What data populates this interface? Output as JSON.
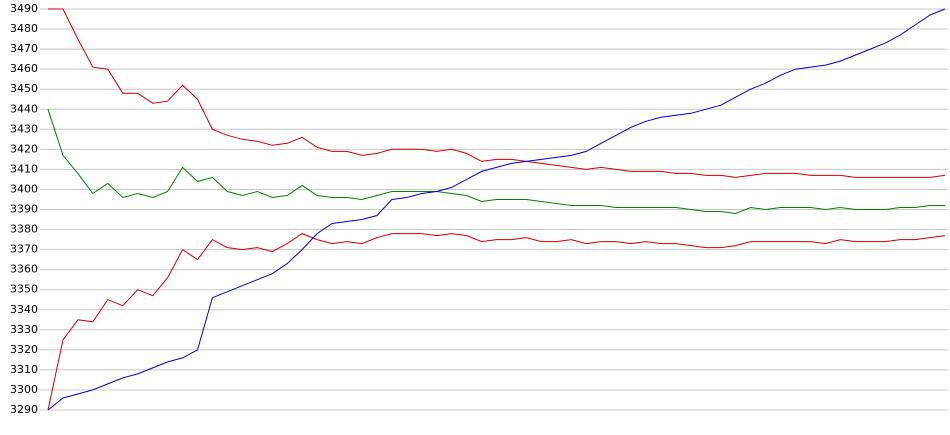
{
  "chart_data": {
    "type": "line",
    "categories": [
      null,
      null,
      null,
      null,
      null,
      null,
      null,
      null,
      null,
      null,
      null,
      null,
      null,
      null,
      null,
      null,
      null,
      null,
      null,
      null,
      null,
      null,
      null,
      null,
      null,
      null,
      null,
      null,
      null,
      null,
      null,
      null,
      null,
      null,
      null,
      null,
      null,
      null,
      null,
      null,
      null,
      null,
      null,
      null,
      null,
      null,
      null,
      null,
      null,
      null,
      null,
      null,
      null,
      null,
      null,
      null,
      null,
      null,
      null,
      null,
      null
    ],
    "ylim": [
      3290,
      3490
    ],
    "yticks": [
      3290,
      3300,
      3310,
      3320,
      3330,
      3340,
      3350,
      3360,
      3370,
      3380,
      3390,
      3400,
      3410,
      3420,
      3430,
      3440,
      3450,
      3460,
      3470,
      3480,
      3490
    ],
    "grid": true,
    "series": [
      {
        "color": "#cc0000",
        "values": [
          3490,
          3490,
          3475,
          3461,
          3460,
          3448,
          3448,
          3443,
          3444,
          3452,
          3445,
          3430,
          3427,
          3425,
          3424,
          3422,
          3423,
          3426,
          3421,
          3419,
          3419,
          3417,
          3418,
          3420,
          3420,
          3420,
          3419,
          3420,
          3418,
          3414,
          3415,
          3415,
          3414,
          3413,
          3412,
          3411,
          3410,
          3411,
          3410,
          3409,
          3409,
          3409,
          3408,
          3408,
          3407,
          3407,
          3406,
          3407,
          3408,
          3408,
          3408,
          3407,
          3407,
          3407,
          3406,
          3406,
          3406,
          3406,
          3406,
          3406,
          3407
        ]
      },
      {
        "color": "#cc0000",
        "values": [
          3290,
          3325,
          3335,
          3334,
          3345,
          3342,
          3350,
          3347,
          3356,
          3370,
          3365,
          3375,
          3371,
          3370,
          3371,
          3369,
          3373,
          3378,
          3375,
          3373,
          3374,
          3373,
          3376,
          3378,
          3378,
          3378,
          3377,
          3378,
          3377,
          3374,
          3375,
          3375,
          3376,
          3374,
          3374,
          3375,
          3373,
          3374,
          3374,
          3373,
          3374,
          3373,
          3373,
          3372,
          3371,
          3371,
          3372,
          3374,
          3374,
          3374,
          3374,
          3374,
          3373,
          3375,
          3374,
          3374,
          3374,
          3375,
          3375,
          3376,
          3377
        ]
      },
      {
        "color": "#008000",
        "values": [
          3440,
          3417,
          3408,
          3398,
          3403,
          3396,
          3398,
          3396,
          3399,
          3411,
          3404,
          3406,
          3399,
          3397,
          3399,
          3396,
          3397,
          3402,
          3397,
          3396,
          3396,
          3395,
          3397,
          3399,
          3399,
          3399,
          3399,
          3398,
          3397,
          3394,
          3395,
          3395,
          3395,
          3394,
          3393,
          3392,
          3392,
          3392,
          3391,
          3391,
          3391,
          3391,
          3391,
          3390,
          3389,
          3389,
          3388,
          3391,
          3390,
          3391,
          3391,
          3391,
          3390,
          3391,
          3390,
          3390,
          3390,
          3391,
          3391,
          3392,
          3392
        ]
      },
      {
        "color": "#0000cc",
        "values": [
          3290,
          3296,
          3298,
          3300,
          3303,
          3306,
          3308,
          3311,
          3314,
          3316,
          3320,
          3346,
          3349,
          3352,
          3355,
          3358,
          3363,
          3370,
          3378,
          3383,
          3384,
          3385,
          3387,
          3395,
          3396,
          3398,
          3399,
          3401,
          3405,
          3409,
          3411,
          3413,
          3414,
          3415,
          3416,
          3417,
          3419,
          3423,
          3427,
          3431,
          3434,
          3436,
          3437,
          3438,
          3440,
          3442,
          3446,
          3450,
          3453,
          3457,
          3460,
          3461,
          3462,
          3464,
          3467,
          3470,
          3473,
          3477,
          3482,
          3487,
          3490
        ]
      }
    ]
  }
}
